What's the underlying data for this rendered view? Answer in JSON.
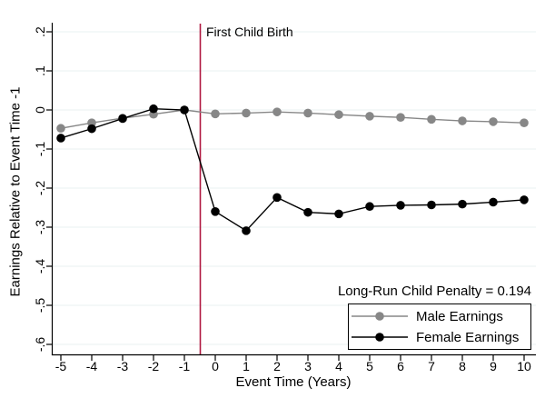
{
  "chart_data": {
    "type": "line",
    "title": "",
    "xlabel": "Event Time (Years)",
    "ylabel": "Earnings Relative to Event Time -1",
    "x": [
      -5,
      -4,
      -3,
      -2,
      -1,
      0,
      1,
      2,
      3,
      4,
      5,
      6,
      7,
      8,
      9,
      10
    ],
    "series": [
      {
        "name": "Male Earnings",
        "color": "#878787",
        "values": [
          -0.047,
          -0.033,
          -0.021,
          -0.011,
          0.0,
          -0.01,
          -0.008,
          -0.005,
          -0.008,
          -0.012,
          -0.016,
          -0.019,
          -0.024,
          -0.028,
          -0.03,
          -0.033
        ]
      },
      {
        "name": "Female Earnings",
        "color": "#000000",
        "values": [
          -0.072,
          -0.048,
          -0.022,
          0.003,
          0.0,
          -0.26,
          -0.309,
          -0.224,
          -0.262,
          -0.266,
          -0.247,
          -0.244,
          -0.243,
          -0.241,
          -0.236,
          -0.23
        ]
      }
    ],
    "ylim": [
      -0.625,
      0.225
    ],
    "xlim": [
      -5.3,
      10.4
    ],
    "yticks": [
      {
        "v": 0.2,
        "label": ".2"
      },
      {
        "v": 0.1,
        "label": ".1"
      },
      {
        "v": 0.0,
        "label": "0"
      },
      {
        "v": -0.1,
        "label": "-.1"
      },
      {
        "v": -0.2,
        "label": "-.2"
      },
      {
        "v": -0.3,
        "label": "-.3"
      },
      {
        "v": -0.4,
        "label": "-.4"
      },
      {
        "v": -0.5,
        "label": "-.5"
      },
      {
        "v": -0.6,
        "label": "-.6"
      }
    ],
    "xticks": [
      {
        "v": -5,
        "label": "-5"
      },
      {
        "v": -4,
        "label": "-4"
      },
      {
        "v": -3,
        "label": "-3"
      },
      {
        "v": -2,
        "label": "-2"
      },
      {
        "v": -1,
        "label": "-1"
      },
      {
        "v": 0,
        "label": "0"
      },
      {
        "v": 1,
        "label": "1"
      },
      {
        "v": 2,
        "label": "2"
      },
      {
        "v": 3,
        "label": "3"
      },
      {
        "v": 4,
        "label": "4"
      },
      {
        "v": 5,
        "label": "5"
      },
      {
        "v": 6,
        "label": "6"
      },
      {
        "v": 7,
        "label": "7"
      },
      {
        "v": 8,
        "label": "8"
      },
      {
        "v": 9,
        "label": "9"
      },
      {
        "v": 10,
        "label": "10"
      }
    ],
    "event_line": {
      "x": -0.5,
      "label": "First Child Birth",
      "color": "#B01940"
    },
    "annotation": {
      "text": "Long-Run Child Penalty = 0.194"
    },
    "legend": {
      "position": "bottom-right"
    },
    "grid": true,
    "gridline_color": "#E9F0F2",
    "axis_color": "#000000"
  }
}
